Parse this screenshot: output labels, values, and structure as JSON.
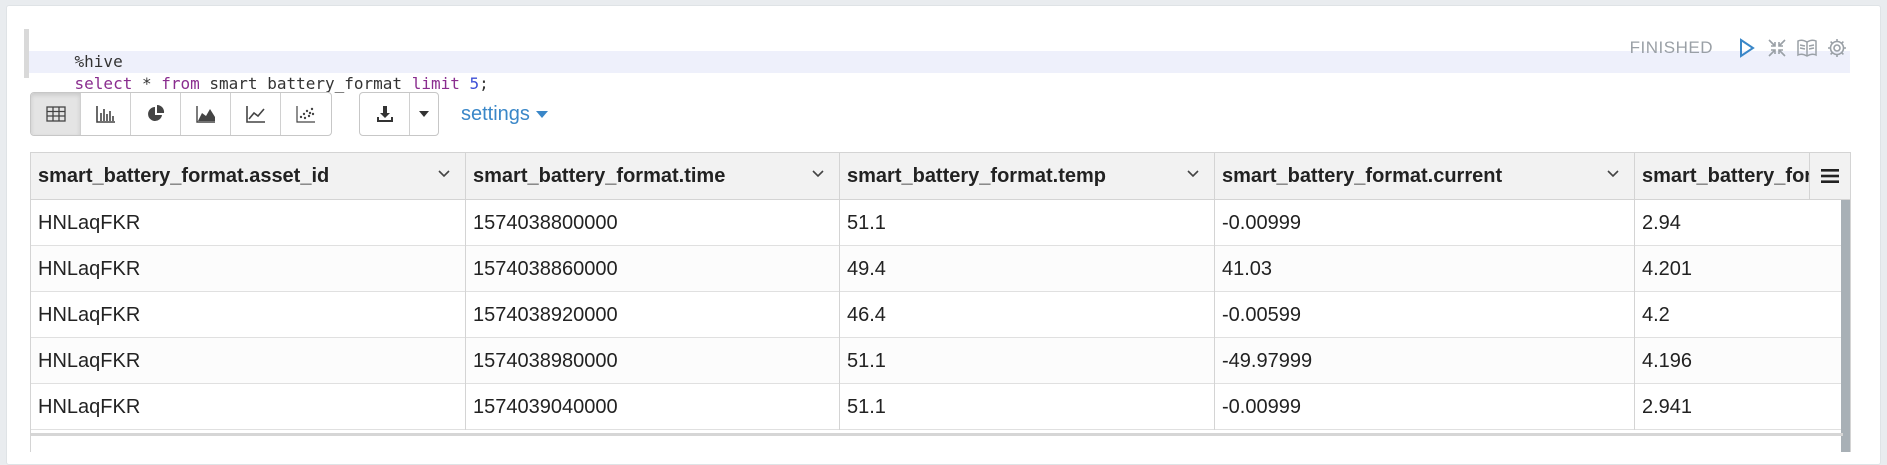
{
  "editor": {
    "lines": [
      {
        "segments": [
          {
            "t": "%hive",
            "k": "plain"
          }
        ]
      },
      {
        "segments": [
          {
            "t": "select",
            "k": "kw"
          },
          {
            "t": " * ",
            "k": "plain"
          },
          {
            "t": "from",
            "k": "kw"
          },
          {
            "t": " smart_battery_format ",
            "k": "plain"
          },
          {
            "t": "limit",
            "k": "kw"
          },
          {
            "t": " ",
            "k": "plain"
          },
          {
            "t": "5",
            "k": "num"
          },
          {
            "t": ";",
            "k": "plain"
          }
        ]
      }
    ],
    "status": "FINISHED",
    "icons": [
      "run-icon",
      "collapse-icon",
      "book-icon",
      "gear-icon"
    ]
  },
  "toolbar": {
    "viz_buttons": [
      "table-icon",
      "bar-chart-icon",
      "pie-chart-icon",
      "area-chart-icon",
      "line-chart-icon",
      "scatter-chart-icon"
    ],
    "active_index": 0,
    "download_icon": "download-icon",
    "settings_label": "settings"
  },
  "table": {
    "columns": [
      "smart_battery_format.asset_id",
      "smart_battery_format.time",
      "smart_battery_format.temp",
      "smart_battery_format.current",
      "smart_battery_format.voltage"
    ],
    "rows": [
      [
        "HNLaqFKR",
        "1574038800000",
        "51.1",
        "-0.00999",
        "2.94"
      ],
      [
        "HNLaqFKR",
        "1574038860000",
        "49.4",
        "41.03",
        "4.201"
      ],
      [
        "HNLaqFKR",
        "1574038920000",
        "46.4",
        "-0.00599",
        "4.2"
      ],
      [
        "HNLaqFKR",
        "1574038980000",
        "51.1",
        "-49.97999",
        "4.196"
      ],
      [
        "HNLaqFKR",
        "1574039040000",
        "51.1",
        "-0.00999",
        "2.941"
      ]
    ]
  },
  "colors": {
    "accent": "#3a87c8",
    "keyword": "#8a2d8f",
    "number": "#3d4fd6"
  }
}
